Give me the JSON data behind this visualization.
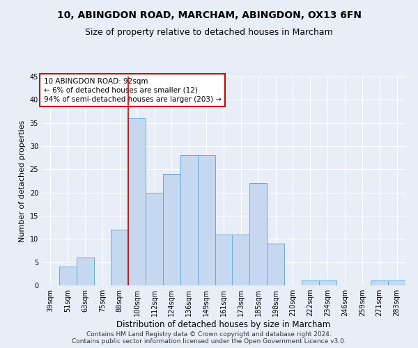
{
  "title": "10, ABINGDON ROAD, MARCHAM, ABINGDON, OX13 6FN",
  "subtitle": "Size of property relative to detached houses in Marcham",
  "xlabel": "Distribution of detached houses by size in Marcham",
  "ylabel": "Number of detached properties",
  "categories": [
    "39sqm",
    "51sqm",
    "63sqm",
    "75sqm",
    "88sqm",
    "100sqm",
    "112sqm",
    "124sqm",
    "136sqm",
    "149sqm",
    "161sqm",
    "173sqm",
    "185sqm",
    "198sqm",
    "210sqm",
    "222sqm",
    "234sqm",
    "246sqm",
    "259sqm",
    "271sqm",
    "283sqm"
  ],
  "values": [
    0,
    4,
    6,
    0,
    12,
    36,
    20,
    24,
    28,
    28,
    11,
    11,
    22,
    9,
    0,
    1,
    1,
    0,
    0,
    1,
    1
  ],
  "bar_color": "#c5d8f0",
  "bar_edgecolor": "#6aaad4",
  "ylim": [
    0,
    45
  ],
  "yticks": [
    0,
    5,
    10,
    15,
    20,
    25,
    30,
    35,
    40,
    45
  ],
  "vline_color": "#cc0000",
  "vline_x_index": 4.5,
  "annotation_text": "10 ABINGDON ROAD: 92sqm\n← 6% of detached houses are smaller (12)\n94% of semi-detached houses are larger (203) →",
  "annotation_box_color": "#ffffff",
  "annotation_box_edgecolor": "#cc0000",
  "footer_line1": "Contains HM Land Registry data © Crown copyright and database right 2024.",
  "footer_line2": "Contains public sector information licensed under the Open Government Licence v3.0.",
  "background_color": "#e8eef8",
  "grid_color": "#ffffff",
  "title_fontsize": 10,
  "subtitle_fontsize": 9,
  "xlabel_fontsize": 8.5,
  "ylabel_fontsize": 8,
  "tick_fontsize": 7,
  "footer_fontsize": 6.5,
  "annotation_fontsize": 7.5
}
